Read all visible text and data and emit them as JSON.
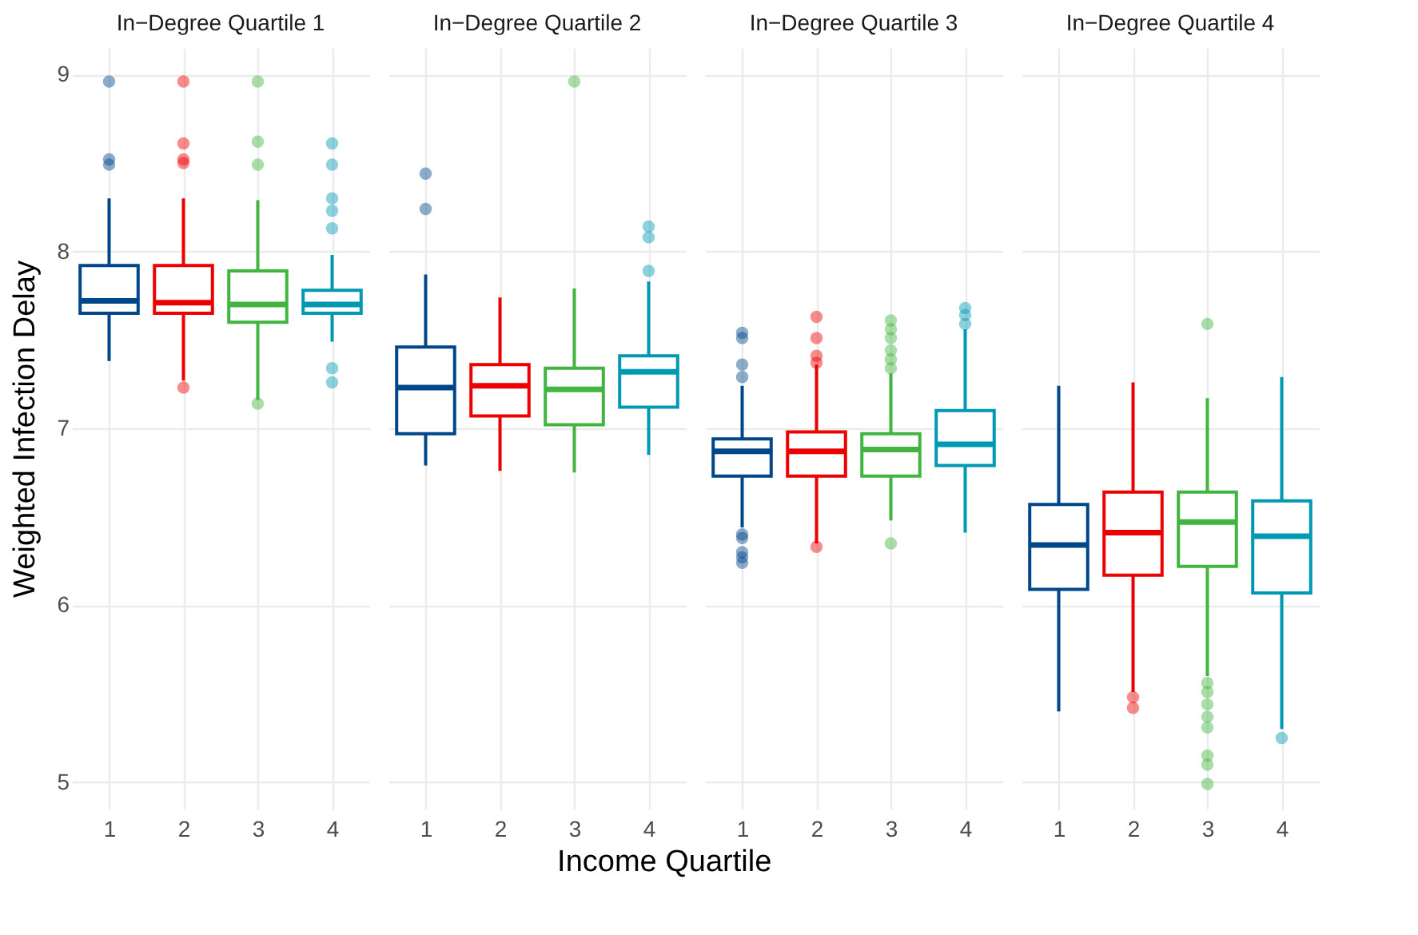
{
  "chart_data": [
    {
      "type": "box",
      "title": "In−Degree Quartile 1",
      "ylabel": "Weighted Infection Delay",
      "categories": [
        "1",
        "2",
        "3",
        "4"
      ],
      "colors": [
        "#00468b",
        "#ed0000",
        "#42b540",
        "#0099b4"
      ],
      "ylim": [
        4.85,
        9.15
      ],
      "yticks": [
        5,
        6,
        7,
        8,
        9
      ],
      "grid": true,
      "boxes": [
        {
          "low": 7.38,
          "q1": 7.65,
          "median": 7.72,
          "q3": 7.92,
          "high": 8.3,
          "outliers": [
            8.96,
            8.52,
            8.49
          ]
        },
        {
          "low": 7.27,
          "q1": 7.65,
          "median": 7.71,
          "q3": 7.92,
          "high": 8.3,
          "outliers": [
            8.96,
            8.61,
            8.52,
            8.5,
            7.23
          ]
        },
        {
          "low": 7.16,
          "q1": 7.6,
          "median": 7.7,
          "q3": 7.89,
          "high": 8.29,
          "outliers": [
            8.96,
            8.62,
            8.49,
            7.14
          ]
        },
        {
          "low": 7.49,
          "q1": 7.65,
          "median": 7.7,
          "q3": 7.78,
          "high": 7.98,
          "outliers": [
            8.61,
            8.49,
            8.3,
            8.23,
            8.13,
            7.34,
            7.26
          ]
        }
      ]
    },
    {
      "type": "box",
      "title": "In−Degree Quartile 2",
      "xlabel": "Income Quartile",
      "categories": [
        "1",
        "2",
        "3",
        "4"
      ],
      "colors": [
        "#00468b",
        "#ed0000",
        "#42b540",
        "#0099b4"
      ],
      "ylim": [
        4.85,
        9.15
      ],
      "yticks": [
        5,
        6,
        7,
        8,
        9
      ],
      "grid": true,
      "tick_labels": "x",
      "boxes": [
        {
          "low": 6.79,
          "q1": 6.97,
          "median": 7.23,
          "q3": 7.46,
          "high": 7.87,
          "outliers": [
            8.44,
            8.24
          ]
        },
        {
          "low": 6.76,
          "q1": 7.07,
          "median": 7.24,
          "q3": 7.36,
          "high": 7.74
        },
        {
          "low": 6.75,
          "q1": 7.02,
          "median": 7.22,
          "q3": 7.34,
          "high": 7.79,
          "outliers": [
            8.96
          ]
        },
        {
          "low": 6.85,
          "q1": 7.12,
          "median": 7.32,
          "q3": 7.41,
          "high": 7.83,
          "outliers": [
            8.14,
            8.08,
            7.89
          ]
        }
      ]
    },
    {
      "type": "box",
      "title": "In−Degree Quartile 3",
      "categories": [
        "1",
        "2",
        "3",
        "4"
      ],
      "colors": [
        "#00468b",
        "#ed0000",
        "#42b540",
        "#0099b4"
      ],
      "ylim": [
        4.85,
        9.15
      ],
      "yticks": [
        5,
        6,
        7,
        8,
        9
      ],
      "grid": true,
      "tick_labels": "x",
      "boxes": [
        {
          "low": 6.44,
          "q1": 6.73,
          "median": 6.87,
          "q3": 6.94,
          "high": 7.24,
          "outliers": [
            7.54,
            7.51,
            7.36,
            7.29,
            6.4,
            6.38,
            6.3,
            6.27,
            6.24
          ]
        },
        {
          "low": 6.35,
          "q1": 6.73,
          "median": 6.87,
          "q3": 6.98,
          "high": 7.36,
          "outliers": [
            7.63,
            7.51,
            7.41,
            7.37,
            6.33
          ]
        },
        {
          "low": 6.48,
          "q1": 6.73,
          "median": 6.88,
          "q3": 6.97,
          "high": 7.31,
          "outliers": [
            7.61,
            7.56,
            7.51,
            7.44,
            7.39,
            7.34,
            6.35
          ]
        },
        {
          "low": 6.41,
          "q1": 6.79,
          "median": 6.91,
          "q3": 7.1,
          "high": 7.56,
          "outliers": [
            7.68,
            7.64,
            7.59
          ]
        }
      ]
    },
    {
      "type": "box",
      "title": "In−Degree Quartile 4",
      "categories": [
        "1",
        "2",
        "3",
        "4"
      ],
      "colors": [
        "#00468b",
        "#ed0000",
        "#42b540",
        "#0099b4"
      ],
      "ylim": [
        4.85,
        9.15
      ],
      "yticks": [
        5,
        6,
        7,
        8,
        9
      ],
      "grid": true,
      "tick_labels": "x",
      "boxes": [
        {
          "low": 5.4,
          "q1": 6.09,
          "median": 6.34,
          "q3": 6.57,
          "high": 7.24
        },
        {
          "low": 5.51,
          "q1": 6.17,
          "median": 6.41,
          "q3": 6.64,
          "high": 7.26,
          "outliers": [
            5.48,
            5.42
          ]
        },
        {
          "low": 5.6,
          "q1": 6.22,
          "median": 6.47,
          "q3": 6.64,
          "high": 7.17,
          "outliers": [
            7.59,
            5.56,
            5.51,
            5.44,
            5.37,
            5.31,
            5.15,
            5.1,
            4.99
          ]
        },
        {
          "low": 5.3,
          "q1": 6.07,
          "median": 6.39,
          "q3": 6.59,
          "high": 7.29,
          "outliers": [
            5.25
          ]
        }
      ]
    }
  ]
}
